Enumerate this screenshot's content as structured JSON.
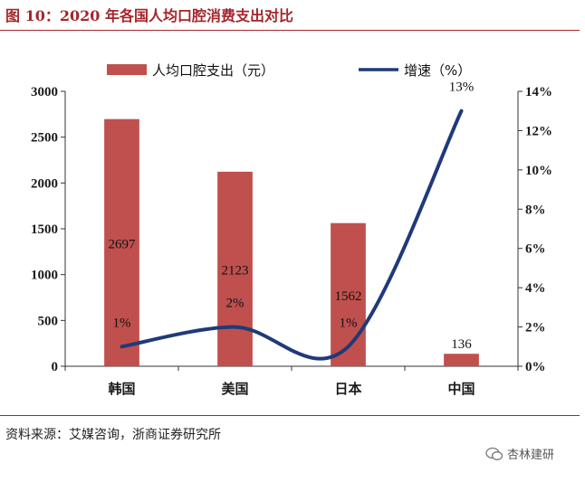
{
  "figure": {
    "title": "图 10：2020 年各国人均口腔消费支出对比",
    "source_note": "资料来源：艾媒咨询，浙商证券研究所",
    "watermark_text": "杏林建研",
    "accent_color": "#a5262c"
  },
  "chart_data": {
    "type": "bar",
    "categories": [
      "韩国",
      "美国",
      "日本",
      "中国"
    ],
    "series": [
      {
        "name": "人均口腔支出（元）",
        "type": "bar",
        "axis": "left",
        "color": "#c0504d",
        "values": [
          2697,
          2123,
          1562,
          136
        ],
        "labels": [
          "2697",
          "2123",
          "1562",
          "136"
        ]
      },
      {
        "name": "增速（%）",
        "type": "line",
        "axis": "right",
        "color": "#1f3a7a",
        "values": [
          1,
          2,
          1,
          13
        ],
        "labels": [
          "1%",
          "2%",
          "1%",
          "13%"
        ]
      }
    ],
    "y_left": {
      "ticks": [
        "0",
        "500",
        "1000",
        "1500",
        "2000",
        "2500",
        "3000"
      ],
      "min": 0,
      "max": 3000
    },
    "y_right": {
      "ticks": [
        "0%",
        "2%",
        "4%",
        "6%",
        "8%",
        "10%",
        "12%",
        "14%"
      ],
      "min": 0,
      "max": 14
    },
    "legend_position": "top",
    "grid": false
  }
}
